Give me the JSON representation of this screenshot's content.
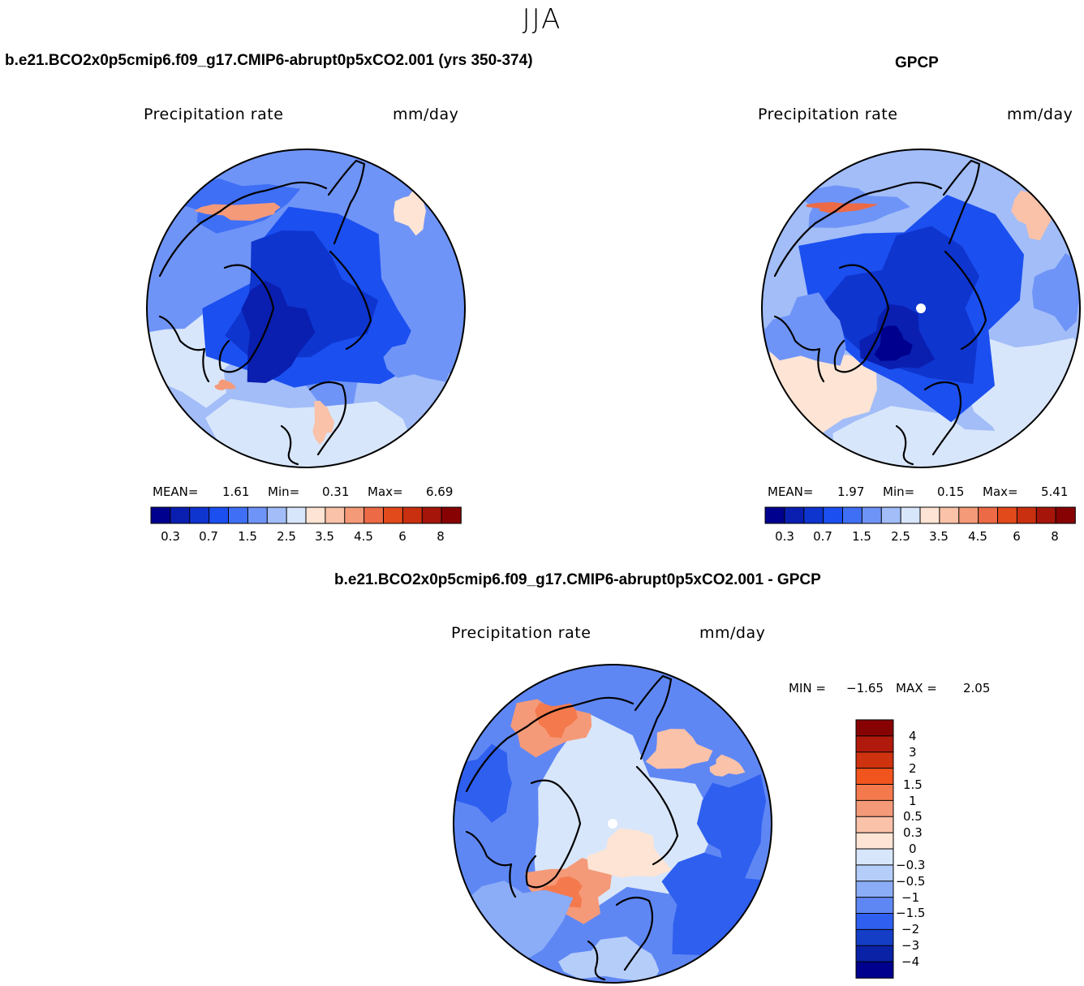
{
  "title": "JJA",
  "chart_data": [
    {
      "type": "heatmap",
      "projection": "north-polar-stereographic",
      "case_title": "b.e21.BCO2x0p5cmip6.f09_g17.CMIP6-abrupt0p5xCO2.001 (yrs 350-374)",
      "variable": "Precipitation rate",
      "units": "mm/day",
      "stats": {
        "mean_label": "MEAN=",
        "mean": "1.61",
        "min_label": "Min=",
        "min": "0.31",
        "max_label": "Max=",
        "max": "6.69"
      },
      "colorbar": {
        "orientation": "horizontal",
        "levels": [
          0.2,
          0.3,
          0.5,
          0.7,
          1,
          1.5,
          2,
          2.5,
          3,
          3.5,
          4,
          4.5,
          5,
          6,
          7,
          8
        ],
        "tick_labels": [
          "0.3",
          "0.7",
          "1.5",
          "2.5",
          "3.5",
          "4.5",
          "6",
          "8"
        ],
        "colors": [
          "#00008e",
          "#0a1fb0",
          "#0f35cf",
          "#1b4ff0",
          "#3f6ff5",
          "#6f94f7",
          "#a2bdf8",
          "#d8e6fb",
          "#fde4d4",
          "#f9c2a9",
          "#f49a79",
          "#ec6a46",
          "#e24a1c",
          "#c8300f",
          "#a5150a",
          "#870303"
        ]
      }
    },
    {
      "type": "heatmap",
      "projection": "north-polar-stereographic",
      "case_title": "GPCP",
      "variable": "Precipitation rate",
      "units": "mm/day",
      "stats": {
        "mean_label": "MEAN=",
        "mean": "1.97",
        "min_label": "Min=",
        "min": "0.15",
        "max_label": "Max=",
        "max": "5.41"
      },
      "colorbar": {
        "orientation": "horizontal",
        "levels": [
          0.2,
          0.3,
          0.5,
          0.7,
          1,
          1.5,
          2,
          2.5,
          3,
          3.5,
          4,
          4.5,
          5,
          6,
          7,
          8
        ],
        "tick_labels": [
          "0.3",
          "0.7",
          "1.5",
          "2.5",
          "3.5",
          "4.5",
          "6",
          "8"
        ],
        "colors": [
          "#00008e",
          "#0a1fb0",
          "#0f35cf",
          "#1b4ff0",
          "#3f6ff5",
          "#6f94f7",
          "#a2bdf8",
          "#d8e6fb",
          "#fde4d4",
          "#f9c2a9",
          "#f49a79",
          "#ec6a46",
          "#e24a1c",
          "#c8300f",
          "#a5150a",
          "#870303"
        ]
      }
    },
    {
      "type": "heatmap",
      "projection": "north-polar-stereographic",
      "case_title": "b.e21.BCO2x0p5cmip6.f09_g17.CMIP6-abrupt0p5xCO2.001 - GPCP",
      "variable": "Precipitation rate",
      "units": "mm/day",
      "stats": {
        "min_label": "MIN =",
        "min": "−1.65",
        "max_label": "MAX =",
        "max": "2.05"
      },
      "colorbar": {
        "orientation": "vertical",
        "tick_labels": [
          "4",
          "3",
          "2",
          "1.5",
          "1",
          "0.5",
          "0.3",
          "0",
          "−0.3",
          "−0.5",
          "−1",
          "−1.5",
          "−2",
          "−3",
          "−4"
        ],
        "colors": [
          "#870303",
          "#b01a0c",
          "#cf320f",
          "#f2541e",
          "#f47a4e",
          "#f49a79",
          "#f9c2a9",
          "#fde4d4",
          "#d8e6fb",
          "#b5cdf9",
          "#8bacf7",
          "#5f87f4",
          "#2f5fef",
          "#143ec6",
          "#0a22a6",
          "#00008e"
        ]
      }
    }
  ]
}
